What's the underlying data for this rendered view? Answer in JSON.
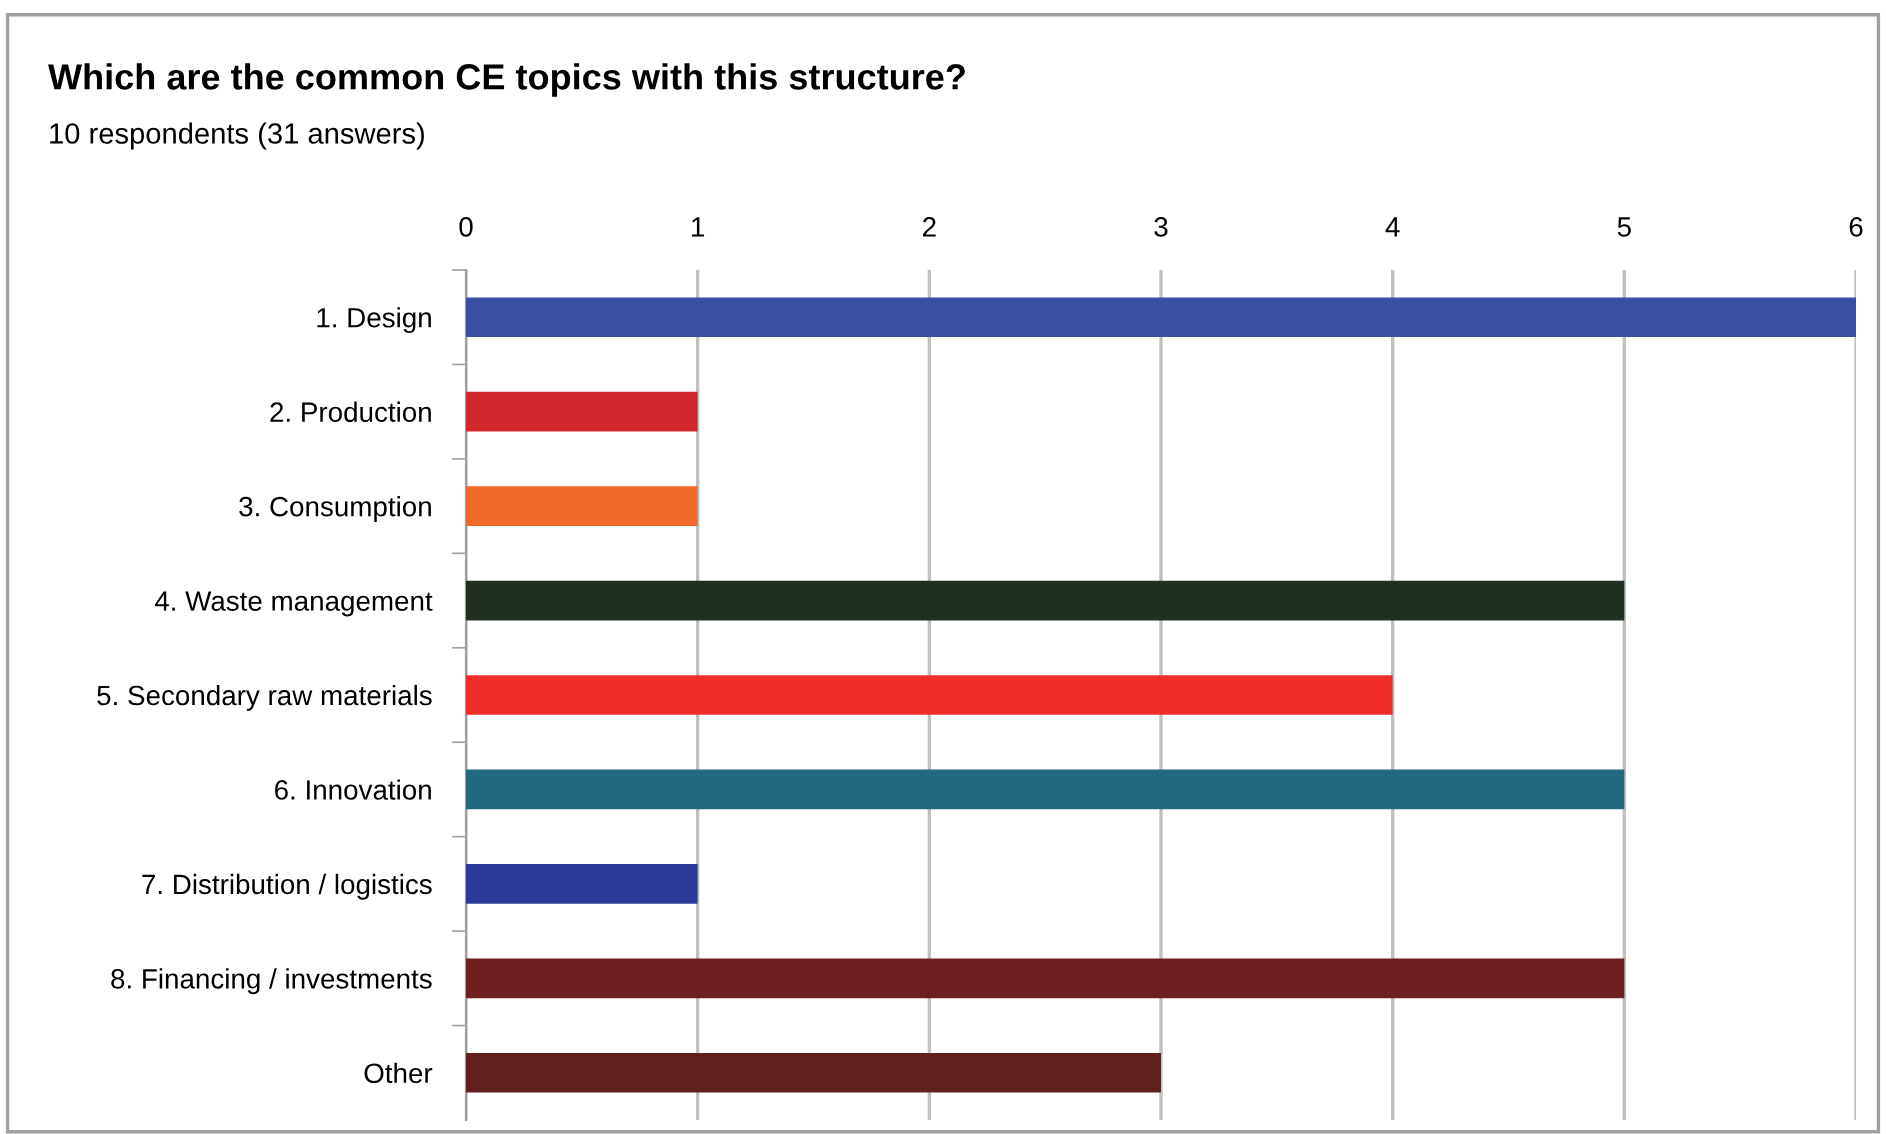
{
  "chart_data": {
    "type": "bar",
    "orientation": "horizontal",
    "title": "Which are the common CE topics with this structure?",
    "subtitle": "10 respondents (31 answers)",
    "categories": [
      "1. Design",
      "2. Production",
      "3. Consumption",
      "4. Waste management",
      "5. Secondary raw materials",
      "6. Innovation",
      "7. Distribution / logistics",
      "8. Financing / investments",
      "Other"
    ],
    "values": [
      6,
      1,
      1,
      5,
      4,
      5,
      1,
      5,
      3
    ],
    "colors": [
      "#3a4fa3",
      "#d0282c",
      "#ef6a2a",
      "#203020",
      "#ef2e2a",
      "#20697e",
      "#2b3a99",
      "#6e1f1f",
      "#611f1d"
    ],
    "xlim": [
      0,
      6
    ],
    "xticks": [
      0,
      1,
      2,
      3,
      4,
      5,
      6
    ],
    "grid": "x",
    "legend": false
  }
}
